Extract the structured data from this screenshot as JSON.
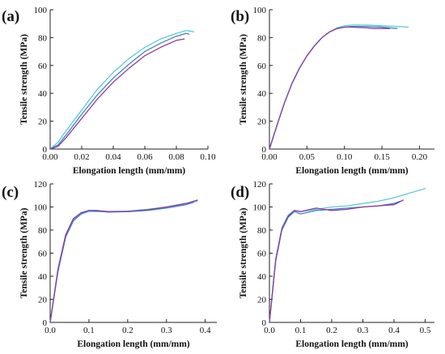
{
  "chart_data": [
    {
      "type": "line",
      "panel_label": "(a)",
      "xlabel": "Elongation length (mm/mm)",
      "ylabel": "Tensile strength (MPa)",
      "xlim": [
        0,
        0.1
      ],
      "ylim": [
        0,
        100
      ],
      "xticks": [
        0.0,
        0.02,
        0.04,
        0.06,
        0.08,
        0.1
      ],
      "xtick_labels": [
        "0.00",
        "0.02",
        "0.04",
        "0.06",
        "0.08",
        "0.10"
      ],
      "yticks": [
        0,
        20,
        40,
        60,
        80,
        100
      ],
      "ytick_labels": [
        "0",
        "20",
        "40",
        "60",
        "80",
        "100"
      ],
      "series": [
        {
          "color": "#62c7d8",
          "x": [
            0,
            0.005,
            0.01,
            0.02,
            0.03,
            0.04,
            0.05,
            0.06,
            0.07,
            0.08,
            0.086,
            0.09,
            0.091
          ],
          "y": [
            0,
            5,
            13,
            28,
            43,
            55,
            65,
            73,
            79,
            83,
            85,
            84.5,
            84
          ]
        },
        {
          "color": "#3f83c8",
          "x": [
            0,
            0.005,
            0.01,
            0.02,
            0.03,
            0.04,
            0.05,
            0.06,
            0.07,
            0.08,
            0.086,
            0.088
          ],
          "y": [
            0,
            3,
            10,
            25,
            39,
            51,
            61,
            70,
            76,
            81,
            83,
            82.5
          ]
        },
        {
          "color": "#8a3f9a",
          "x": [
            0,
            0.005,
            0.01,
            0.02,
            0.03,
            0.04,
            0.05,
            0.06,
            0.07,
            0.08,
            0.085
          ],
          "y": [
            0,
            2,
            8,
            22,
            36,
            48,
            58,
            67,
            73,
            78,
            79
          ]
        }
      ]
    },
    {
      "type": "line",
      "panel_label": "(b)",
      "xlabel": "Elongation length (mm/mm)",
      "ylabel": "Tensile strength (MPa)",
      "xlim": [
        0,
        0.22
      ],
      "ylim": [
        0,
        100
      ],
      "xticks": [
        0.0,
        0.05,
        0.1,
        0.15,
        0.2
      ],
      "xtick_labels": [
        "0.00",
        "0.05",
        "0.10",
        "0.15",
        "0.20"
      ],
      "yticks": [
        0,
        20,
        40,
        60,
        80,
        100
      ],
      "ytick_labels": [
        "0",
        "20",
        "40",
        "60",
        "80",
        "100"
      ],
      "series": [
        {
          "color": "#62c7d8",
          "x": [
            0,
            0.01,
            0.02,
            0.03,
            0.04,
            0.05,
            0.06,
            0.07,
            0.08,
            0.09,
            0.1,
            0.11,
            0.13,
            0.15,
            0.17,
            0.185
          ],
          "y": [
            0,
            17,
            33,
            47,
            58,
            67,
            74,
            80,
            84,
            87,
            88.5,
            89,
            89,
            88.5,
            88,
            87.5
          ]
        },
        {
          "color": "#3f83c8",
          "x": [
            0,
            0.01,
            0.02,
            0.03,
            0.04,
            0.05,
            0.06,
            0.07,
            0.08,
            0.09,
            0.1,
            0.11,
            0.13,
            0.15,
            0.17
          ],
          "y": [
            0,
            17,
            33,
            47,
            58,
            67,
            74,
            80,
            84,
            86.5,
            87.5,
            88,
            88,
            87.5,
            86.5
          ]
        },
        {
          "color": "#8a3f9a",
          "x": [
            0,
            0.01,
            0.02,
            0.03,
            0.04,
            0.05,
            0.06,
            0.07,
            0.08,
            0.09,
            0.1,
            0.11,
            0.13,
            0.14,
            0.15,
            0.16
          ],
          "y": [
            0,
            17,
            33,
            47,
            58,
            67,
            74,
            80,
            84,
            86.5,
            87.5,
            87.5,
            87,
            86.5,
            86.5,
            86.5
          ]
        }
      ]
    },
    {
      "type": "line",
      "panel_label": "(c)",
      "xlabel": "Elongation length (mm/mm)",
      "ylabel": "Tensile strength (MPa)",
      "xlim": [
        0,
        0.43
      ],
      "ylim": [
        0,
        120
      ],
      "xticks": [
        0.0,
        0.1,
        0.2,
        0.3,
        0.4
      ],
      "xtick_labels": [
        "0.0",
        "0.1",
        "0.2",
        "0.3",
        "0.4"
      ],
      "yticks": [
        0,
        20,
        40,
        60,
        80,
        100,
        120
      ],
      "ytick_labels": [
        "0",
        "20",
        "40",
        "60",
        "80",
        "100",
        "120"
      ],
      "series": [
        {
          "color": "#62c7d8",
          "x": [
            0,
            0.02,
            0.04,
            0.06,
            0.08,
            0.1,
            0.12,
            0.15,
            0.2,
            0.25,
            0.3,
            0.35,
            0.38
          ],
          "y": [
            0,
            45,
            75,
            89,
            94,
            96,
            96,
            96,
            96.5,
            98,
            100,
            103,
            105
          ]
        },
        {
          "color": "#3f83c8",
          "x": [
            0,
            0.02,
            0.04,
            0.06,
            0.08,
            0.1,
            0.12,
            0.15,
            0.2,
            0.25,
            0.3,
            0.35,
            0.37
          ],
          "y": [
            0,
            44,
            74,
            88,
            94,
            97,
            96.5,
            95.5,
            96,
            97,
            99,
            102,
            104
          ]
        },
        {
          "color": "#8a3f9a",
          "x": [
            0,
            0.02,
            0.04,
            0.06,
            0.08,
            0.1,
            0.12,
            0.15,
            0.2,
            0.25,
            0.3,
            0.35,
            0.38
          ],
          "y": [
            0,
            46,
            76,
            90,
            95,
            97,
            97,
            96,
            96,
            97.5,
            100,
            103,
            106
          ]
        }
      ]
    },
    {
      "type": "line",
      "panel_label": "(d)",
      "xlabel": "Elongation length (mm/mm)",
      "ylabel": "Tensile strength (MPa)",
      "xlim": [
        0,
        0.53
      ],
      "ylim": [
        0,
        120
      ],
      "xticks": [
        0.0,
        0.1,
        0.2,
        0.3,
        0.4,
        0.5
      ],
      "xtick_labels": [
        "0.0",
        "0.1",
        "0.2",
        "0.3",
        "0.4",
        "0.5"
      ],
      "yticks": [
        0,
        20,
        40,
        60,
        80,
        100,
        120
      ],
      "ytick_labels": [
        "0",
        "20",
        "40",
        "60",
        "80",
        "100",
        "120"
      ],
      "series": [
        {
          "color": "#62c7d8",
          "x": [
            0,
            0.02,
            0.04,
            0.06,
            0.08,
            0.1,
            0.15,
            0.2,
            0.25,
            0.3,
            0.35,
            0.4,
            0.45,
            0.5
          ],
          "y": [
            0,
            55,
            82,
            93,
            97,
            96,
            98,
            100,
            101,
            103,
            105,
            108,
            112,
            116
          ]
        },
        {
          "color": "#3f83c8",
          "x": [
            0,
            0.02,
            0.04,
            0.06,
            0.08,
            0.1,
            0.15,
            0.2,
            0.25,
            0.3,
            0.35,
            0.4,
            0.42
          ],
          "y": [
            0,
            53,
            80,
            91,
            96,
            94,
            97,
            98,
            99,
            100,
            101,
            103,
            105
          ]
        },
        {
          "color": "#8a3f9a",
          "x": [
            0,
            0.02,
            0.04,
            0.06,
            0.08,
            0.1,
            0.15,
            0.2,
            0.25,
            0.3,
            0.35,
            0.4,
            0.43
          ],
          "y": [
            0,
            54,
            81,
            92,
            97,
            96,
            99,
            97,
            98,
            100,
            101,
            102,
            106
          ]
        }
      ]
    }
  ]
}
